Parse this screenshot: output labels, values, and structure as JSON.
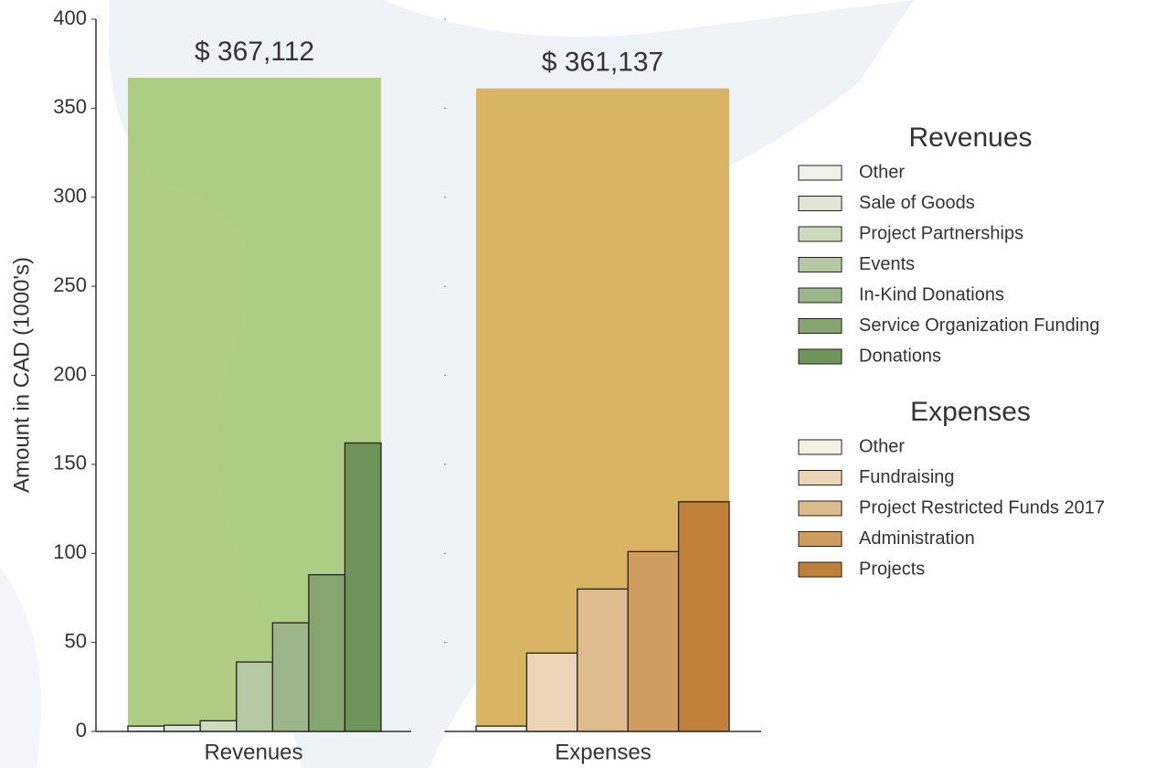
{
  "chart_data": {
    "type": "bar",
    "ylabel": "Amount in CAD (1000's)",
    "ylim": [
      0,
      400
    ],
    "yticks": [
      0,
      50,
      100,
      150,
      200,
      250,
      300,
      350,
      400
    ],
    "panels": [
      {
        "title": "Revenues",
        "total": 367.112,
        "total_label": "$ 367,112",
        "total_color": "#a9c97b",
        "categories": [
          "Other",
          "Sale of Goods",
          "Project Partnerships",
          "Events",
          "In-Kind Donations",
          "Service Organization Funding",
          "Donations"
        ],
        "values": [
          3,
          3.5,
          6,
          39,
          61,
          88,
          162
        ],
        "colors": [
          "#f0f2ea",
          "#dfe6d5",
          "#cddcbe",
          "#b5c9a5",
          "#9db58a",
          "#86a56f",
          "#6e9459"
        ]
      },
      {
        "title": "Expenses",
        "total": 361.137,
        "total_label": "$ 361,137",
        "total_color": "#d6ae58",
        "categories": [
          "Other",
          "Fundraising",
          "Project Restricted Funds 2017",
          "Administration",
          "Projects"
        ],
        "values": [
          3,
          44,
          80,
          101,
          129
        ],
        "colors": [
          "#f6efe3",
          "#ecd5b7",
          "#ddbb8e",
          "#cf9c5f",
          "#c08039"
        ]
      }
    ]
  }
}
